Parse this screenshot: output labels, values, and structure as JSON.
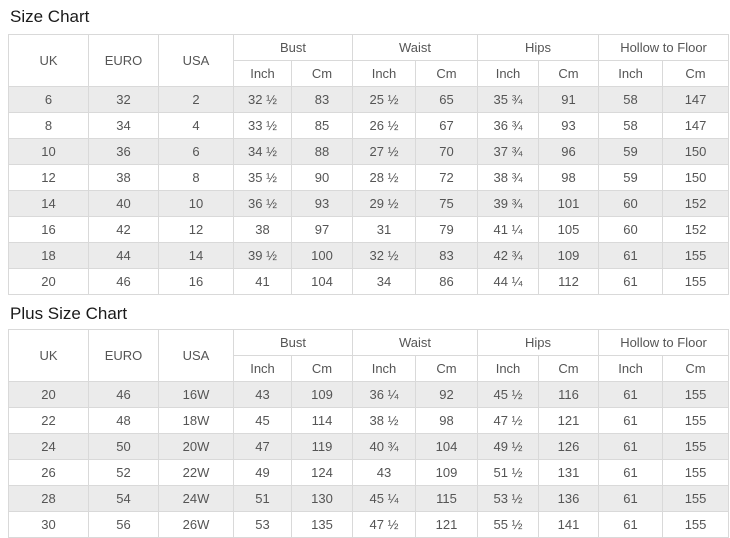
{
  "colors": {
    "stripe": "#ebebeb",
    "border": "#d9d9d9",
    "cell_text": "#555555",
    "title_text": "#1a1a1a"
  },
  "chart_data": [
    {
      "type": "table",
      "title": "Size Chart",
      "headers": {
        "rowspan_cols": [
          "UK",
          "EURO",
          "USA"
        ],
        "groups": [
          "Bust",
          "Waist",
          "Hips",
          "Hollow to Floor"
        ],
        "units": [
          "Inch",
          "Cm"
        ]
      },
      "rows": [
        [
          "6",
          "32",
          "2",
          "32 ½",
          "83",
          "25 ½",
          "65",
          "35 ¾",
          "91",
          "58",
          "147"
        ],
        [
          "8",
          "34",
          "4",
          "33 ½",
          "85",
          "26 ½",
          "67",
          "36 ¾",
          "93",
          "58",
          "147"
        ],
        [
          "10",
          "36",
          "6",
          "34 ½",
          "88",
          "27 ½",
          "70",
          "37 ¾",
          "96",
          "59",
          "150"
        ],
        [
          "12",
          "38",
          "8",
          "35 ½",
          "90",
          "28 ½",
          "72",
          "38 ¾",
          "98",
          "59",
          "150"
        ],
        [
          "14",
          "40",
          "10",
          "36 ½",
          "93",
          "29 ½",
          "75",
          "39 ¾",
          "101",
          "60",
          "152"
        ],
        [
          "16",
          "42",
          "12",
          "38",
          "97",
          "31",
          "79",
          "41 ¼",
          "105",
          "60",
          "152"
        ],
        [
          "18",
          "44",
          "14",
          "39 ½",
          "100",
          "32 ½",
          "83",
          "42 ¾",
          "109",
          "61",
          "155"
        ],
        [
          "20",
          "46",
          "16",
          "41",
          "104",
          "34",
          "86",
          "44 ¼",
          "112",
          "61",
          "155"
        ]
      ]
    },
    {
      "type": "table",
      "title": "Plus Size Chart",
      "headers": {
        "rowspan_cols": [
          "UK",
          "EURO",
          "USA"
        ],
        "groups": [
          "Bust",
          "Waist",
          "Hips",
          "Hollow to Floor"
        ],
        "units": [
          "Inch",
          "Cm"
        ]
      },
      "rows": [
        [
          "20",
          "46",
          "16W",
          "43",
          "109",
          "36 ¼",
          "92",
          "45 ½",
          "116",
          "61",
          "155"
        ],
        [
          "22",
          "48",
          "18W",
          "45",
          "114",
          "38 ½",
          "98",
          "47 ½",
          "121",
          "61",
          "155"
        ],
        [
          "24",
          "50",
          "20W",
          "47",
          "119",
          "40 ¾",
          "104",
          "49 ½",
          "126",
          "61",
          "155"
        ],
        [
          "26",
          "52",
          "22W",
          "49",
          "124",
          "43",
          "109",
          "51 ½",
          "131",
          "61",
          "155"
        ],
        [
          "28",
          "54",
          "24W",
          "51",
          "130",
          "45 ¼",
          "115",
          "53 ½",
          "136",
          "61",
          "155"
        ],
        [
          "30",
          "56",
          "26W",
          "53",
          "135",
          "47 ½",
          "121",
          "55 ½",
          "141",
          "61",
          "155"
        ]
      ]
    }
  ]
}
